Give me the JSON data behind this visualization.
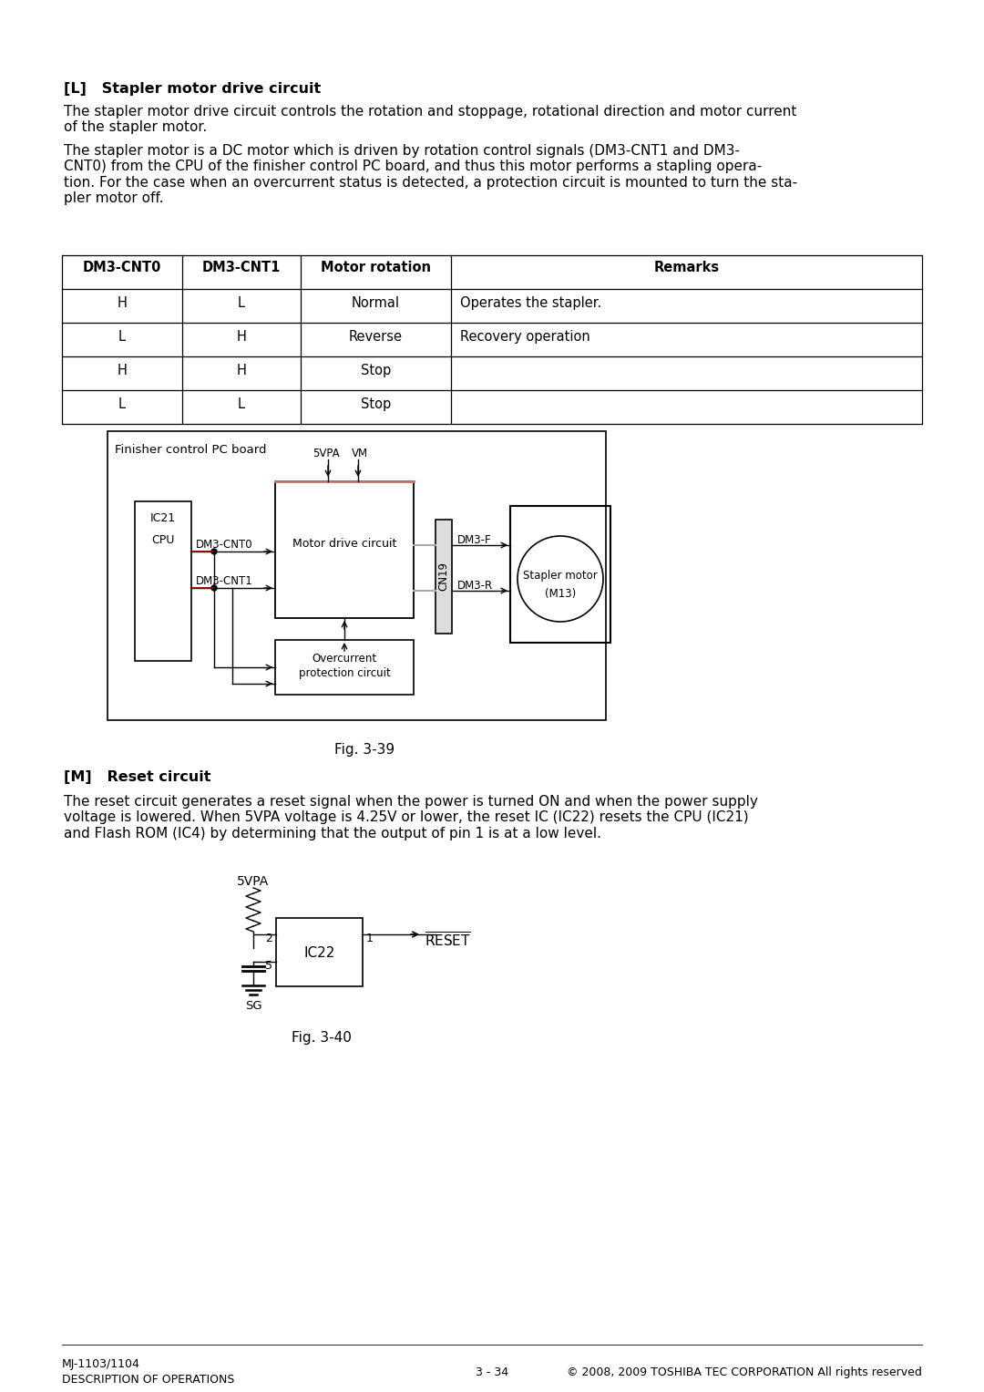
{
  "title_section_L": "[L]   Stapler motor drive circuit",
  "para1": "The stapler motor drive circuit controls the rotation and stoppage, rotational direction and motor current\nof the stapler motor.",
  "para2": "The stapler motor is a DC motor which is driven by rotation control signals (DM3-CNT1 and DM3-\nCNT0) from the CPU of the finisher control PC board, and thus this motor performs a stapling opera-\ntion. For the case when an overcurrent status is detected, a protection circuit is mounted to turn the sta-\npler motor off.",
  "table_headers": [
    "DM3-CNT0",
    "DM3-CNT1",
    "Motor rotation",
    "Remarks"
  ],
  "table_rows": [
    [
      "H",
      "L",
      "Normal",
      "Operates the stapler."
    ],
    [
      "L",
      "H",
      "Reverse",
      "Recovery operation"
    ],
    [
      "H",
      "H",
      "Stop",
      ""
    ],
    [
      "L",
      "L",
      "Stop",
      ""
    ]
  ],
  "fig1_caption": "Fig. 3-39",
  "title_section_M": "[M]   Reset circuit",
  "para3": "The reset circuit generates a reset signal when the power is turned ON and when the power supply\nvoltage is lowered. When 5VPA voltage is 4.25V or lower, the reset IC (IC22) resets the CPU (IC21)\nand Flash ROM (IC4) by determining that the output of pin 1 is at a low level.",
  "fig2_caption": "Fig. 3-40",
  "footer_left1": "MJ-1103/1104",
  "footer_left2": "DESCRIPTION OF OPERATIONS",
  "footer_center": "3 - 34",
  "footer_right": "© 2008, 2009 TOSHIBA TEC CORPORATION All rights reserved",
  "bg_color": "#ffffff",
  "text_color": "#000000",
  "red_line_color": "#8b0000",
  "gray_line_color": "#aaaaaa",
  "mdc_top_color": "#c87070"
}
